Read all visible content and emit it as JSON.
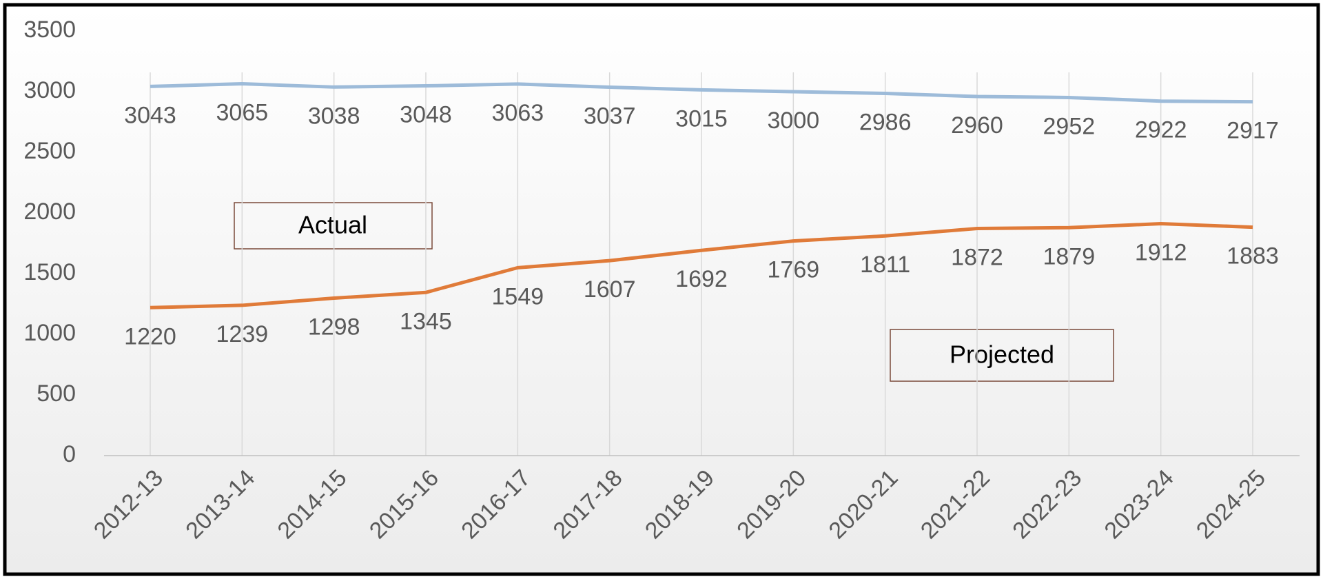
{
  "chart_data": {
    "type": "line",
    "categories": [
      "2012-13",
      "2013-14",
      "2014-15",
      "2015-16",
      "2016-17",
      "2017-18",
      "2018-19",
      "2019-20",
      "2020-21",
      "2021-22",
      "2022-23",
      "2023-24",
      "2024-25"
    ],
    "series": [
      {
        "color": "#9dbbd9",
        "values": [
          3043,
          3065,
          3038,
          3048,
          3063,
          3037,
          3015,
          3000,
          2986,
          2960,
          2952,
          2922,
          2917
        ]
      },
      {
        "color": "#e07b39",
        "values": [
          1220,
          1239,
          1298,
          1345,
          1549,
          1607,
          1692,
          1769,
          1811,
          1872,
          1879,
          1912,
          1883
        ]
      }
    ],
    "annotations": [
      "Actual",
      "Projected"
    ],
    "ylim": [
      0,
      3500
    ],
    "yticks": [
      0,
      500,
      1000,
      1500,
      2000,
      2500,
      3000,
      3500
    ],
    "grid": false
  }
}
